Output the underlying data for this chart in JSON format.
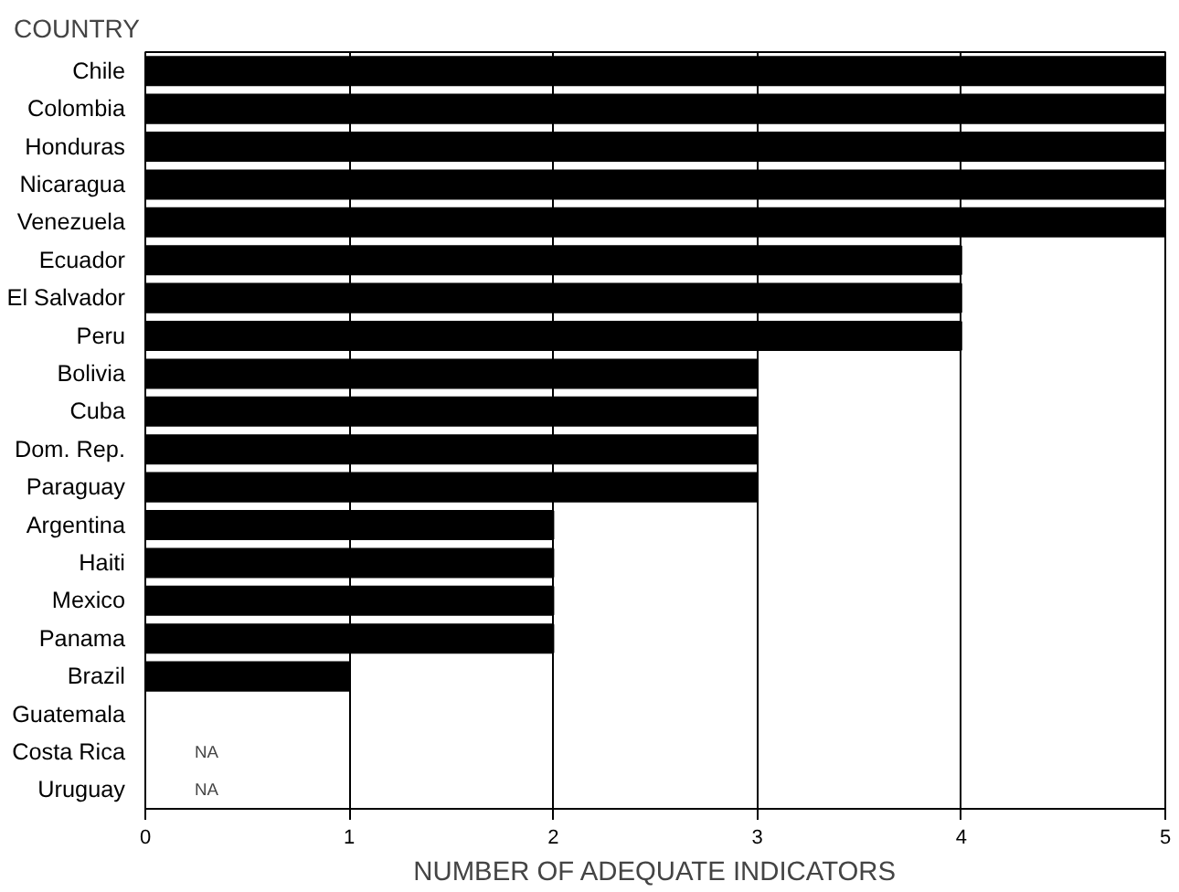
{
  "chart_data": {
    "type": "bar",
    "orientation": "horizontal",
    "ylabel": "COUNTRY",
    "xlabel": "NUMBER OF ADEQUATE INDICATORS",
    "categories": [
      "Chile",
      "Colombia",
      "Honduras",
      "Nicaragua",
      "Venezuela",
      "Ecuador",
      "El Salvador",
      "Peru",
      "Bolivia",
      "Cuba",
      "Dom. Rep.",
      "Paraguay",
      "Argentina",
      "Haiti",
      "Mexico",
      "Panama",
      "Brazil",
      "Guatemala",
      "Costa Rica",
      "Uruguay"
    ],
    "values": [
      5,
      5,
      5,
      5,
      5,
      4,
      4,
      4,
      3,
      3,
      3,
      3,
      2,
      2,
      2,
      2,
      1,
      0,
      null,
      null
    ],
    "value_labels": [
      null,
      null,
      null,
      null,
      null,
      null,
      null,
      null,
      null,
      null,
      null,
      null,
      null,
      null,
      null,
      null,
      null,
      null,
      "NA",
      "NA"
    ],
    "color": "#000000",
    "xlim": [
      0,
      5
    ],
    "xticks": [
      0,
      1,
      2,
      3,
      4,
      5
    ],
    "grid": "x"
  }
}
